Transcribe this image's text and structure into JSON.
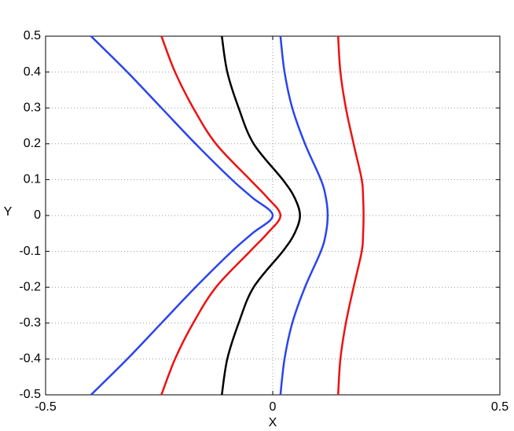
{
  "chart_data": {
    "type": "line",
    "x_label": "X",
    "y_label": "Y",
    "xlim": [
      -0.5,
      0.5
    ],
    "xticks": [
      -0.5,
      0,
      0.5
    ],
    "ylim": [
      -0.5,
      0.5
    ],
    "yticks": [
      -0.5,
      -0.4,
      -0.3,
      -0.2,
      -0.1,
      0,
      0.1,
      0.2,
      0.3,
      0.4,
      0.5
    ],
    "grid": true,
    "series": [
      {
        "color": "#2a44ee",
        "x": [
          -0.4,
          -0.32,
          -0.245,
          -0.17,
          -0.09,
          -0.045,
          0,
          -0.045,
          -0.09,
          -0.17,
          -0.245,
          -0.32,
          -0.4
        ],
        "values": [
          0.5,
          0.4,
          0.3,
          0.2,
          0.1,
          0.05,
          0,
          -0.05,
          -0.1,
          -0.2,
          -0.3,
          -0.4,
          -0.5
        ]
      },
      {
        "color": "#ee1111",
        "x": [
          -0.245,
          -0.215,
          -0.175,
          -0.125,
          -0.05,
          -0.012,
          0.017,
          -0.012,
          -0.05,
          -0.125,
          -0.175,
          -0.215,
          -0.245
        ],
        "values": [
          0.5,
          0.4,
          0.3,
          0.2,
          0.1,
          0.05,
          0,
          -0.05,
          -0.1,
          -0.2,
          -0.3,
          -0.4,
          -0.5
        ]
      },
      {
        "color": "#000000",
        "x": [
          -0.112,
          -0.1,
          -0.075,
          -0.042,
          0.022,
          0.048,
          0.06,
          0.048,
          0.022,
          -0.042,
          -0.075,
          -0.1,
          -0.112
        ],
        "values": [
          0.5,
          0.4,
          0.3,
          0.2,
          0.1,
          0.05,
          0,
          -0.05,
          -0.1,
          -0.2,
          -0.3,
          -0.4,
          -0.5
        ]
      },
      {
        "color": "#2a44ee",
        "x": [
          0.017,
          0.026,
          0.043,
          0.071,
          0.106,
          0.117,
          0.121,
          0.117,
          0.106,
          0.071,
          0.043,
          0.026,
          0.017
        ],
        "values": [
          0.5,
          0.4,
          0.3,
          0.2,
          0.1,
          0.05,
          0,
          -0.05,
          -0.1,
          -0.2,
          -0.3,
          -0.4,
          -0.5
        ]
      },
      {
        "color": "#ee1111",
        "x": [
          0.144,
          0.149,
          0.161,
          0.178,
          0.196,
          0.199,
          0.2,
          0.199,
          0.196,
          0.178,
          0.161,
          0.149,
          0.144
        ],
        "values": [
          0.5,
          0.4,
          0.3,
          0.2,
          0.1,
          0.05,
          0,
          -0.05,
          -0.1,
          -0.2,
          -0.3,
          -0.4,
          -0.5
        ]
      }
    ]
  }
}
